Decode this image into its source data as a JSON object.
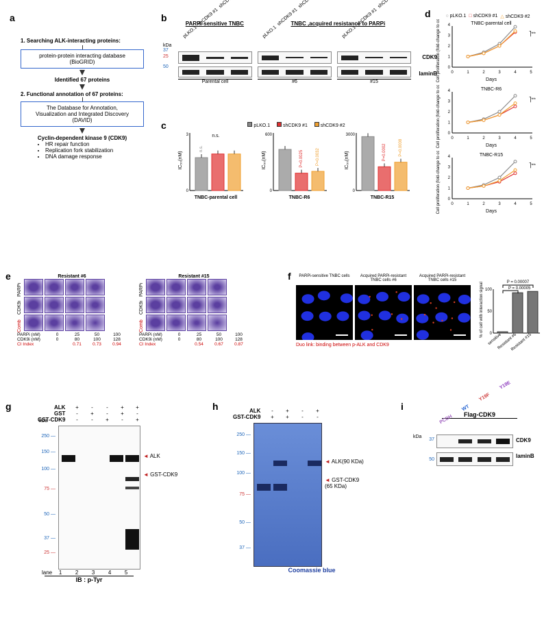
{
  "panelLabels": {
    "a": "a",
    "b": "b",
    "c": "c",
    "d": "d",
    "e": "e",
    "f": "f",
    "g": "g",
    "h": "h",
    "i": "i"
  },
  "flowchart": {
    "step1_title": "1. Searching ALK-interacting proteins:",
    "box1": "protein-protein interacting database\n(BioGRID)",
    "link1": "Identified 67 proteins",
    "step2_title": "2. Functional annotation of 67 proteins:",
    "box2": "The Database for Annotation,\nVisualization and Integrated Discovery\n(DAVID)",
    "result_title": "Cyclin-dependent kinase 9 (CDK9)",
    "bullets": [
      "HR repair function",
      "Replication fork stabilization",
      "DNA damage response"
    ]
  },
  "panel_b": {
    "header_left": "PARPi-sensitive TNBC",
    "header_right": "TNBC ,acquired resistance to PARPi",
    "lanes": [
      "pLKO.1",
      "shCDK9 #1",
      "shCDK9 #2"
    ],
    "targets": [
      "CDK9",
      "laminB"
    ],
    "markers": [
      "37",
      "25",
      "50"
    ],
    "kDa": "kDa",
    "footer": [
      "Parental cell",
      "#6",
      "#15"
    ]
  },
  "panel_c": {
    "legend": [
      {
        "label": "pLKO.1",
        "color": "#888888"
      },
      {
        "label": "shCDK9 #1",
        "color": "#e03030"
      },
      {
        "label": "shCDK9 #2",
        "color": "#f0a030"
      }
    ],
    "ylabel": "IC₅₀(nM)",
    "charts": [
      {
        "title": "TNBC-parental cell",
        "ymax": 3,
        "values": [
          1.8,
          2.0,
          2.0
        ],
        "pvals": [
          "n.s.",
          "",
          ""
        ],
        "signif": "n.s."
      },
      {
        "title": "TNBC-R6",
        "ymax": 600,
        "values": [
          450,
          190,
          210
        ],
        "pvals": [
          "",
          "P=0.0025",
          "P=0.0032"
        ]
      },
      {
        "title": "TNBC-R15",
        "ymax": 3000,
        "values": [
          2950,
          1300,
          1550
        ],
        "pvals": [
          "",
          "P=0.0002",
          "P=0.0008"
        ]
      }
    ]
  },
  "panel_d": {
    "legend": [
      {
        "marker": "○",
        "label": "pLKO.1",
        "color": "#888888"
      },
      {
        "marker": "□",
        "label": "shCDK9 #1",
        "color": "#e03030"
      },
      {
        "marker": "△",
        "label": "shCDK9 #2",
        "color": "#f0a030"
      }
    ],
    "xlabel": "Days",
    "ylabel": "Cell proliferation\n(fold-change to control)",
    "charts": [
      {
        "title": "TNBC-parental cell",
        "x": [
          1,
          2,
          3,
          4
        ],
        "series": [
          [
            1,
            1.4,
            2.2,
            3.8
          ],
          [
            1,
            1.3,
            2.0,
            3.3
          ],
          [
            1,
            1.3,
            2.0,
            3.4
          ]
        ],
        "sig": "***"
      },
      {
        "title": "TNBC-R6",
        "x": [
          1,
          2,
          3,
          4
        ],
        "series": [
          [
            1,
            1.3,
            2.0,
            3.5
          ],
          [
            1,
            1.2,
            1.7,
            2.5
          ],
          [
            1,
            1.2,
            1.7,
            2.8
          ]
        ],
        "sig": "***"
      },
      {
        "title": "TNBC-R15",
        "x": [
          1,
          2,
          3,
          4
        ],
        "series": [
          [
            1,
            1.3,
            2.0,
            3.5
          ],
          [
            1,
            1.2,
            1.6,
            2.4
          ],
          [
            1,
            1.2,
            1.7,
            2.7
          ]
        ],
        "sig": "***"
      }
    ],
    "ylim": [
      0,
      4
    ],
    "xlim": [
      0,
      5
    ]
  },
  "panel_e": {
    "plates": [
      {
        "title": "Resistant #6",
        "rows": [
          "PARPi",
          "CDK9i",
          "Comb"
        ],
        "parpi": [
          0,
          25,
          50,
          100
        ],
        "cdk9i": [
          0,
          80,
          100,
          128
        ],
        "ci": [
          "0.71",
          "0.73",
          "0.94"
        ]
      },
      {
        "title": "Resistant #15",
        "rows": [
          "PARPi",
          "CDK9i",
          "Comb"
        ],
        "parpi": [
          0,
          25,
          50,
          100
        ],
        "cdk9i": [
          0,
          80,
          100,
          128
        ],
        "ci": [
          "0.54",
          "0.67",
          "0.87"
        ]
      }
    ],
    "labels": {
      "parpi": "PARPi (nM)",
      "cdk9i": "CDK9i (nM)",
      "ci": "CI Index"
    }
  },
  "panel_f": {
    "cols": [
      "PARPi-sensitive TNBC cells",
      "Acquired PARPi-resistant\nTNBC cells #6",
      "Acquired PARPi-resistant\nTNBC cells #15"
    ],
    "caption": "Duo link: binding between p-ALK and CDK9",
    "bar": {
      "ylabel": "% of cell with interaction signal",
      "x": [
        "sensitive",
        "Resistant #6",
        "Resistant #15"
      ],
      "values": [
        3,
        92,
        95
      ],
      "pvals": [
        "P = 0.00005",
        "P = 0.00007"
      ],
      "color": "#555555",
      "ylim": [
        0,
        100
      ]
    }
  },
  "panel_g": {
    "rows": [
      {
        "label": "ALK",
        "lanes": [
          "+",
          "-",
          "-",
          "+",
          "+"
        ]
      },
      {
        "label": "GST",
        "lanes": [
          "-",
          "+",
          "-",
          "+",
          "-"
        ]
      },
      {
        "label": "GST-CDK9",
        "lanes": [
          "-",
          "-",
          "+",
          "-",
          "+"
        ]
      }
    ],
    "kDa": "kDa",
    "markers": [
      "250",
      "150",
      "100",
      "75",
      "50",
      "37",
      "25"
    ],
    "marker_colors": {
      "250": "#1a63b8",
      "150": "#1a63b8",
      "100": "#1a63b8",
      "75": "#cc3333",
      "50": "#1a63b8",
      "37": "#1a63b8",
      "25": "#cc3333"
    },
    "bands": [
      "ALK",
      "GST-CDK9"
    ],
    "lane_label": "lane",
    "lanes": [
      "1",
      "2",
      "3",
      "4",
      "5"
    ],
    "ib": "IB : p-Tyr"
  },
  "panel_h": {
    "rows": [
      {
        "label": "ALK",
        "lanes": [
          "-",
          "+",
          "-",
          "+"
        ]
      },
      {
        "label": "GST-CDK9",
        "lanes": [
          "+",
          "+",
          "-",
          "-"
        ]
      }
    ],
    "markers": [
      "250",
      "150",
      "100",
      "75",
      "50",
      "37"
    ],
    "marker_colors": {
      "250": "#1a63b8",
      "150": "#1a63b8",
      "100": "#1a63b8",
      "75": "#cc3333",
      "50": "#1a63b8",
      "37": "#1a63b8"
    },
    "bands": [
      "ALK(90 KDa)",
      "GST-CDK9\n(65 KDa)"
    ],
    "footer": "Coomassie  blue"
  },
  "panel_i": {
    "header": "Flag-CDK9",
    "lanes": [
      {
        "label": "PCDH",
        "color": "#a060c0"
      },
      {
        "label": "WT",
        "color": "#2060d0"
      },
      {
        "label": "Y19F",
        "color": "#d04040"
      },
      {
        "label": "Y19E",
        "color": "#9040c0"
      }
    ],
    "kDa": "kDa",
    "markers": [
      "37",
      "50"
    ],
    "targets": [
      "CDK9",
      "laminB"
    ]
  },
  "colors": {
    "blot_bg": "#1c1c1c",
    "band_gray": "#999",
    "arrow_red": "#c02020",
    "marker_blue": "#1a63b8",
    "marker_red": "#cc3333"
  }
}
